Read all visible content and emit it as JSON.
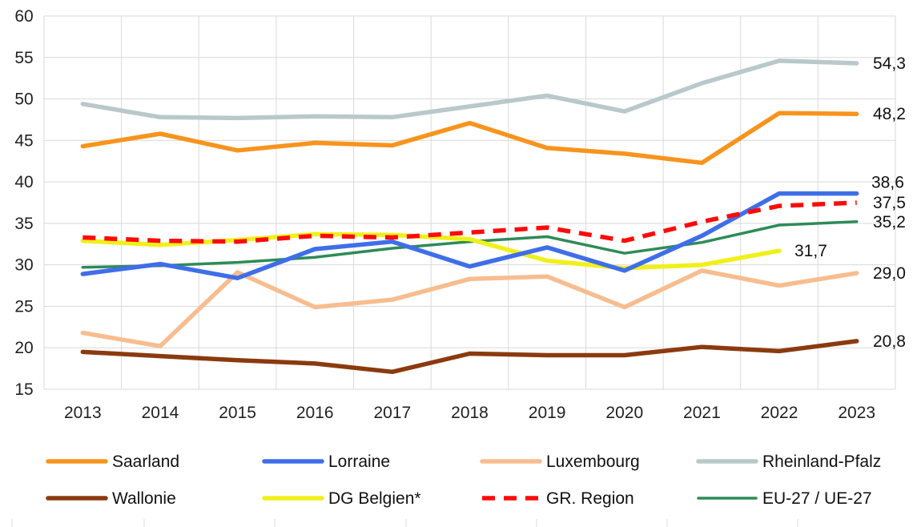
{
  "chart_data": {
    "type": "line",
    "title": "",
    "xlabel": "",
    "ylabel": "",
    "x": [
      "2013",
      "2014",
      "2015",
      "2016",
      "2017",
      "2018",
      "2019",
      "2020",
      "2021",
      "2022",
      "2023"
    ],
    "ylim": [
      15,
      60
    ],
    "yticks": [
      "15",
      "20",
      "25",
      "30",
      "35",
      "40",
      "45",
      "50",
      "55",
      "60"
    ],
    "grid": true,
    "legend_placement": "bottom",
    "series": [
      {
        "name": "Saarland",
        "color": "#f7941d",
        "dash": false,
        "width": "thick",
        "values": [
          44.3,
          45.8,
          43.8,
          44.7,
          44.4,
          47.1,
          44.1,
          43.4,
          42.3,
          48.3,
          48.2
        ],
        "end_label": "48,2"
      },
      {
        "name": "Lorraine",
        "color": "#3f6ee8",
        "dash": false,
        "width": "thick",
        "values": [
          28.9,
          30.1,
          28.4,
          31.9,
          32.8,
          29.8,
          32.1,
          29.3,
          33.5,
          38.6,
          38.6
        ],
        "end_label": "38,6"
      },
      {
        "name": "Luxembourg",
        "color": "#f7bd8f",
        "dash": false,
        "width": "thick",
        "values": [
          21.8,
          20.2,
          29.1,
          24.9,
          25.8,
          28.3,
          28.6,
          24.9,
          29.3,
          27.5,
          29.0
        ],
        "end_label": "29,0"
      },
      {
        "name": "Rheinland-Pfalz",
        "color": "#b9c8cb",
        "dash": false,
        "width": "thick",
        "values": [
          49.4,
          47.8,
          47.7,
          47.9,
          47.8,
          49.1,
          50.4,
          48.5,
          51.9,
          54.6,
          54.3
        ],
        "end_label": "54,3"
      },
      {
        "name": "Wallonie",
        "color": "#8b3a0e",
        "dash": false,
        "width": "thick",
        "values": [
          19.5,
          19.0,
          18.5,
          18.1,
          17.1,
          19.3,
          19.1,
          19.1,
          20.1,
          19.6,
          20.8
        ],
        "end_label": "20,8"
      },
      {
        "name": "DG Belgien*",
        "color": "#f0f01a",
        "dash": false,
        "width": "thick",
        "values": [
          32.9,
          32.4,
          33.0,
          33.7,
          33.6,
          33.1,
          30.5,
          29.6,
          30.0,
          31.7,
          null
        ],
        "end_label": "31,7"
      },
      {
        "name": "GR. Region",
        "color": "#ff0a0a",
        "dash": true,
        "width": "thick",
        "values": [
          33.3,
          32.9,
          32.8,
          33.5,
          33.3,
          33.9,
          34.5,
          32.9,
          35.2,
          37.1,
          37.5
        ],
        "end_label": "37,5"
      },
      {
        "name": "EU-27 / UE-27",
        "color": "#2e8b57",
        "dash": false,
        "width": "thin",
        "values": [
          29.7,
          29.9,
          30.3,
          30.9,
          32.0,
          32.8,
          33.4,
          31.4,
          32.7,
          34.8,
          35.2
        ],
        "end_label": "35,2"
      }
    ]
  }
}
